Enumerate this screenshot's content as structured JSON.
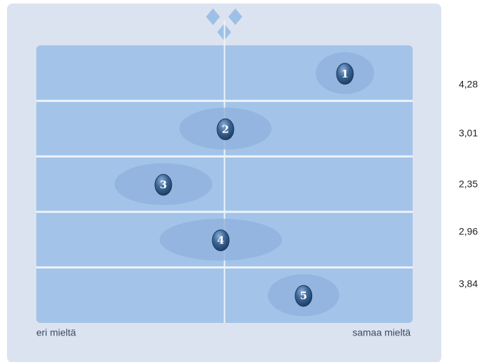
{
  "chart_data": {
    "type": "dot",
    "categories": [
      "1",
      "2",
      "3",
      "4",
      "5"
    ],
    "values": [
      4.28,
      3.01,
      2.35,
      2.96,
      3.84
    ],
    "value_labels": [
      "4,28",
      "3,01",
      "2,35",
      "2,96",
      "3,84"
    ],
    "errors": [
      0.31,
      0.49,
      0.52,
      0.65,
      0.38
    ],
    "xlim": [
      1,
      5
    ],
    "x_min_label": "eri mieltä",
    "x_max_label": "samaa mieltä",
    "color": "#2f5b8e"
  }
}
